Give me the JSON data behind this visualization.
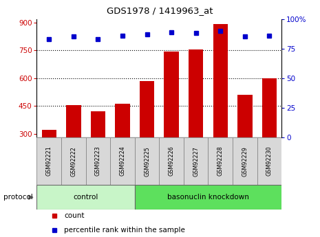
{
  "title": "GDS1978 / 1419963_at",
  "samples": [
    "GSM92221",
    "GSM92222",
    "GSM92223",
    "GSM92224",
    "GSM92225",
    "GSM92226",
    "GSM92227",
    "GSM92228",
    "GSM92229",
    "GSM92230"
  ],
  "counts": [
    320,
    453,
    422,
    462,
    585,
    745,
    757,
    893,
    510,
    600
  ],
  "percentile_ranks": [
    83,
    85,
    83,
    86,
    87,
    89,
    88,
    90,
    85,
    86
  ],
  "ylim_left": [
    280,
    920
  ],
  "ylim_right": [
    0,
    100
  ],
  "yticks_left": [
    300,
    450,
    600,
    750,
    900
  ],
  "yticks_right": [
    0,
    25,
    50,
    75,
    100
  ],
  "ytick_labels_right": [
    "0",
    "25",
    "50",
    "75",
    "100%"
  ],
  "grid_lines": [
    450,
    600,
    750
  ],
  "groups": [
    {
      "label": "control",
      "start": 0,
      "end": 3,
      "color": "#c8f5c8"
    },
    {
      "label": "basonuclin knockdown",
      "start": 4,
      "end": 9,
      "color": "#5de05d"
    }
  ],
  "bar_color": "#cc0000",
  "dot_color": "#0000cc",
  "background_color": "#ffffff",
  "tick_color_left": "#cc0000",
  "tick_color_right": "#0000cc",
  "legend_count_label": "count",
  "legend_percentile_label": "percentile rank within the sample",
  "protocol_label": "protocol",
  "sample_box_color": "#d8d8d8",
  "figsize": [
    4.65,
    3.45
  ],
  "dpi": 100
}
